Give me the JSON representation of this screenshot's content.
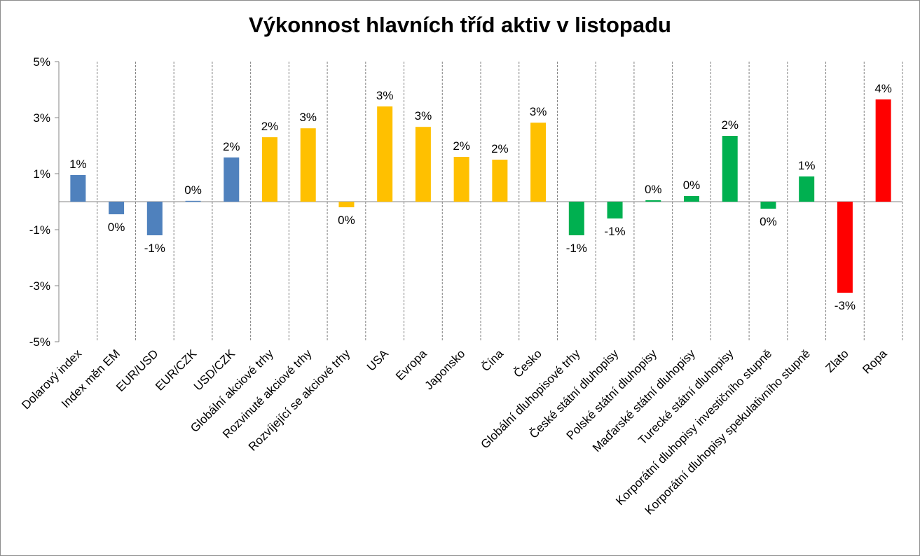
{
  "chart_data": {
    "type": "bar",
    "title": "Výkonnost hlavních tříd aktiv v listopadu",
    "xlabel": "",
    "ylabel": "",
    "ylim": [
      -5,
      5
    ],
    "y_ticks": [
      "5%",
      "3%",
      "1%",
      "-1%",
      "-3%",
      "-5%"
    ],
    "grid": "vertical dashed",
    "legend": "none",
    "categories": [
      "Dolarový index",
      "Index měn EM",
      "EUR/USD",
      "EUR/CZK",
      "USD/CZK",
      "Globální akciové trhy",
      "Rozvinuté akciové trhy",
      "Rozvíjející se akciové trhy",
      "USA",
      "Evropa",
      "Japonsko",
      "Čína",
      "Česko",
      "Globální dluhopisové trhy",
      "České státní dluhopisy",
      "Polské státní dluhopisy",
      "Maďarské státní dluhopisy",
      "Turecké státní dluhopisy",
      "Korporátní dluhopisy investičního stupně",
      "Korporátní dluhopisy spekulativního stupně",
      "Zlato",
      "Ropa"
    ],
    "values": [
      0.95,
      -0.45,
      -1.2,
      0.03,
      1.58,
      2.3,
      2.62,
      -0.2,
      3.4,
      2.67,
      1.6,
      1.5,
      2.82,
      -1.2,
      -0.6,
      0.05,
      0.2,
      2.35,
      -0.25,
      0.9,
      -3.25,
      3.65
    ],
    "data_labels": [
      "1%",
      "0%",
      "-1%",
      "0%",
      "2%",
      "2%",
      "3%",
      "0%",
      "3%",
      "3%",
      "2%",
      "2%",
      "3%",
      "-1%",
      "-1%",
      "0%",
      "0%",
      "2%",
      "0%",
      "1%",
      "-3%",
      "4%"
    ],
    "colors": [
      "#4f81bd",
      "#4f81bd",
      "#4f81bd",
      "#4f81bd",
      "#4f81bd",
      "#ffc000",
      "#ffc000",
      "#ffc000",
      "#ffc000",
      "#ffc000",
      "#ffc000",
      "#ffc000",
      "#ffc000",
      "#00b050",
      "#00b050",
      "#00b050",
      "#00b050",
      "#00b050",
      "#00b050",
      "#00b050",
      "#ff0000",
      "#ff0000"
    ]
  }
}
